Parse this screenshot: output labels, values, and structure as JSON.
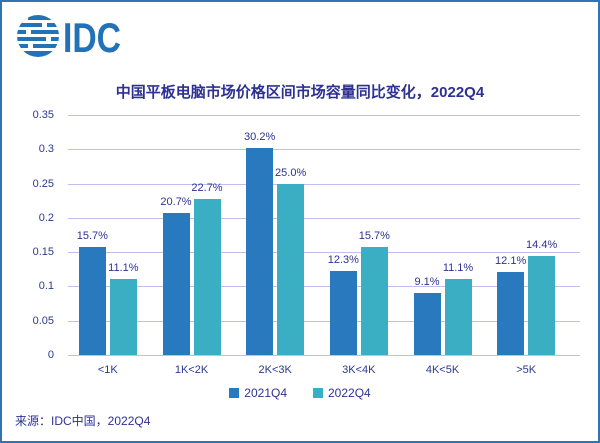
{
  "logo": {
    "text": "IDC"
  },
  "header": {
    "title": "中国平板电脑市场价格区间市场容量同比变化，2022Q4"
  },
  "footer": {
    "source": "来源：IDC中国，2022Q4"
  },
  "colors": {
    "border": "#2E75B6",
    "title_text": "#2E3192",
    "axis_text": "#2B3990",
    "gridline": "#BFBFEE",
    "logo_blue": "#2272B8",
    "series_2021Q4": "#2979BE",
    "series_2022Q4": "#3AAEC2"
  },
  "chart_data": {
    "type": "bar",
    "title": "中国平板电脑市场价格区间市场容量同比变化，2022Q4",
    "categories": [
      "<1K",
      "1K<2K",
      "2K<3K",
      "3K<4K",
      "4K<5K",
      ">5K"
    ],
    "series": [
      {
        "name": "2021Q4",
        "color": "#2979BE",
        "values": [
          0.157,
          0.207,
          0.302,
          0.123,
          0.091,
          0.121
        ],
        "labels": [
          "15.7%",
          "20.7%",
          "30.2%",
          "12.3%",
          "9.1%",
          "12.1%"
        ]
      },
      {
        "name": "2022Q4",
        "color": "#3AAEC2",
        "values": [
          0.111,
          0.227,
          0.25,
          0.157,
          0.111,
          0.144
        ],
        "labels": [
          "11.1%",
          "22.7%",
          "25.0%",
          "15.7%",
          "11.1%",
          "14.4%"
        ]
      }
    ],
    "y_ticks": [
      0,
      0.05,
      0.1,
      0.15,
      0.2,
      0.25,
      0.3,
      0.35
    ],
    "y_tick_labels": [
      "0",
      "0.05",
      "0.1",
      "0.15",
      "0.2",
      "0.25",
      "0.3",
      "0.35"
    ],
    "ylim": [
      0,
      0.35
    ],
    "xlabel": "",
    "ylabel": "",
    "grid": true,
    "legend_position": "bottom"
  }
}
